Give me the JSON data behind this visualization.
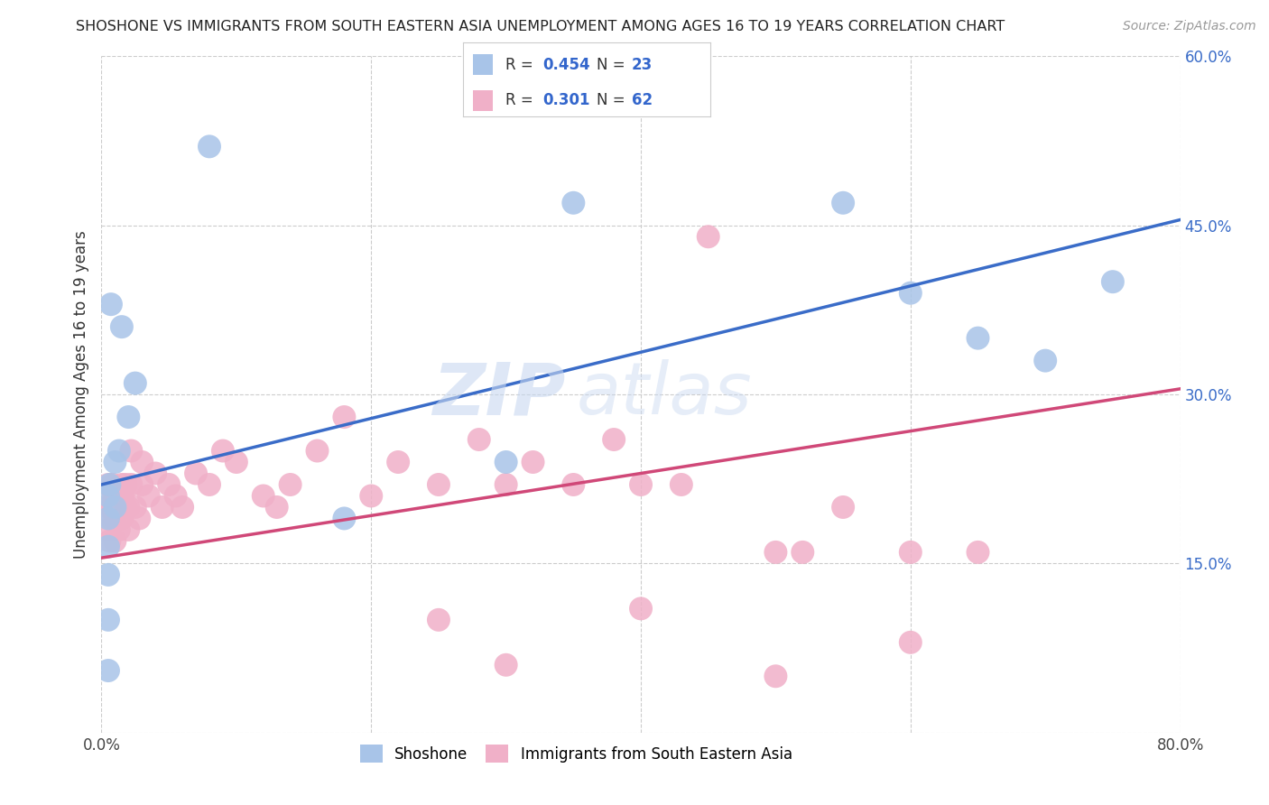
{
  "title": "SHOSHONE VS IMMIGRANTS FROM SOUTH EASTERN ASIA UNEMPLOYMENT AMONG AGES 16 TO 19 YEARS CORRELATION CHART",
  "source": "Source: ZipAtlas.com",
  "ylabel": "Unemployment Among Ages 16 to 19 years",
  "xlim": [
    0.0,
    0.8
  ],
  "ylim": [
    0.0,
    0.6
  ],
  "xticks": [
    0.0,
    0.2,
    0.4,
    0.6,
    0.8
  ],
  "xticklabels": [
    "0.0%",
    "",
    "",
    "",
    "80.0%"
  ],
  "yticks": [
    0.0,
    0.15,
    0.3,
    0.45,
    0.6
  ],
  "yticklabels": [
    "",
    "15.0%",
    "30.0%",
    "45.0%",
    "60.0%"
  ],
  "background_color": "#ffffff",
  "grid_color": "#cccccc",
  "watermark_zip": "ZIP",
  "watermark_atlas": "atlas",
  "shoshone_color": "#a8c4e8",
  "immigrants_color": "#f0b0c8",
  "shoshone_line_color": "#3a6cc8",
  "immigrants_line_color": "#d04878",
  "shoshone_R": 0.454,
  "shoshone_N": 23,
  "immigrants_R": 0.301,
  "immigrants_N": 62,
  "shoshone_line_x0": 0.0,
  "shoshone_line_y0": 0.22,
  "shoshone_line_x1": 0.8,
  "shoshone_line_y1": 0.455,
  "immigrants_line_x0": 0.0,
  "immigrants_line_y0": 0.155,
  "immigrants_line_x1": 0.8,
  "immigrants_line_y1": 0.305,
  "shoshone_x": [
    0.005,
    0.005,
    0.005,
    0.005,
    0.005,
    0.005,
    0.006,
    0.007,
    0.01,
    0.01,
    0.013,
    0.015,
    0.02,
    0.025,
    0.08,
    0.18,
    0.3,
    0.35,
    0.55,
    0.6,
    0.65,
    0.7,
    0.75
  ],
  "shoshone_y": [
    0.165,
    0.19,
    0.21,
    0.14,
    0.1,
    0.055,
    0.22,
    0.38,
    0.2,
    0.24,
    0.25,
    0.36,
    0.28,
    0.31,
    0.52,
    0.19,
    0.24,
    0.47,
    0.47,
    0.39,
    0.35,
    0.33,
    0.4
  ],
  "immigrants_x": [
    0.005,
    0.005,
    0.005,
    0.006,
    0.007,
    0.008,
    0.008,
    0.009,
    0.01,
    0.01,
    0.01,
    0.012,
    0.013,
    0.015,
    0.015,
    0.016,
    0.018,
    0.018,
    0.02,
    0.02,
    0.022,
    0.022,
    0.025,
    0.028,
    0.03,
    0.03,
    0.035,
    0.04,
    0.045,
    0.05,
    0.055,
    0.06,
    0.07,
    0.08,
    0.09,
    0.1,
    0.12,
    0.13,
    0.14,
    0.16,
    0.18,
    0.2,
    0.22,
    0.25,
    0.28,
    0.3,
    0.32,
    0.35,
    0.38,
    0.4,
    0.43,
    0.45,
    0.5,
    0.52,
    0.55,
    0.6,
    0.65,
    0.25,
    0.3,
    0.4,
    0.5,
    0.6
  ],
  "immigrants_y": [
    0.18,
    0.2,
    0.22,
    0.17,
    0.19,
    0.2,
    0.22,
    0.21,
    0.17,
    0.19,
    0.21,
    0.2,
    0.18,
    0.22,
    0.19,
    0.21,
    0.2,
    0.22,
    0.18,
    0.2,
    0.22,
    0.25,
    0.2,
    0.19,
    0.22,
    0.24,
    0.21,
    0.23,
    0.2,
    0.22,
    0.21,
    0.2,
    0.23,
    0.22,
    0.25,
    0.24,
    0.21,
    0.2,
    0.22,
    0.25,
    0.28,
    0.21,
    0.24,
    0.22,
    0.26,
    0.22,
    0.24,
    0.22,
    0.26,
    0.22,
    0.22,
    0.44,
    0.16,
    0.16,
    0.2,
    0.16,
    0.16,
    0.1,
    0.06,
    0.11,
    0.05,
    0.08
  ]
}
